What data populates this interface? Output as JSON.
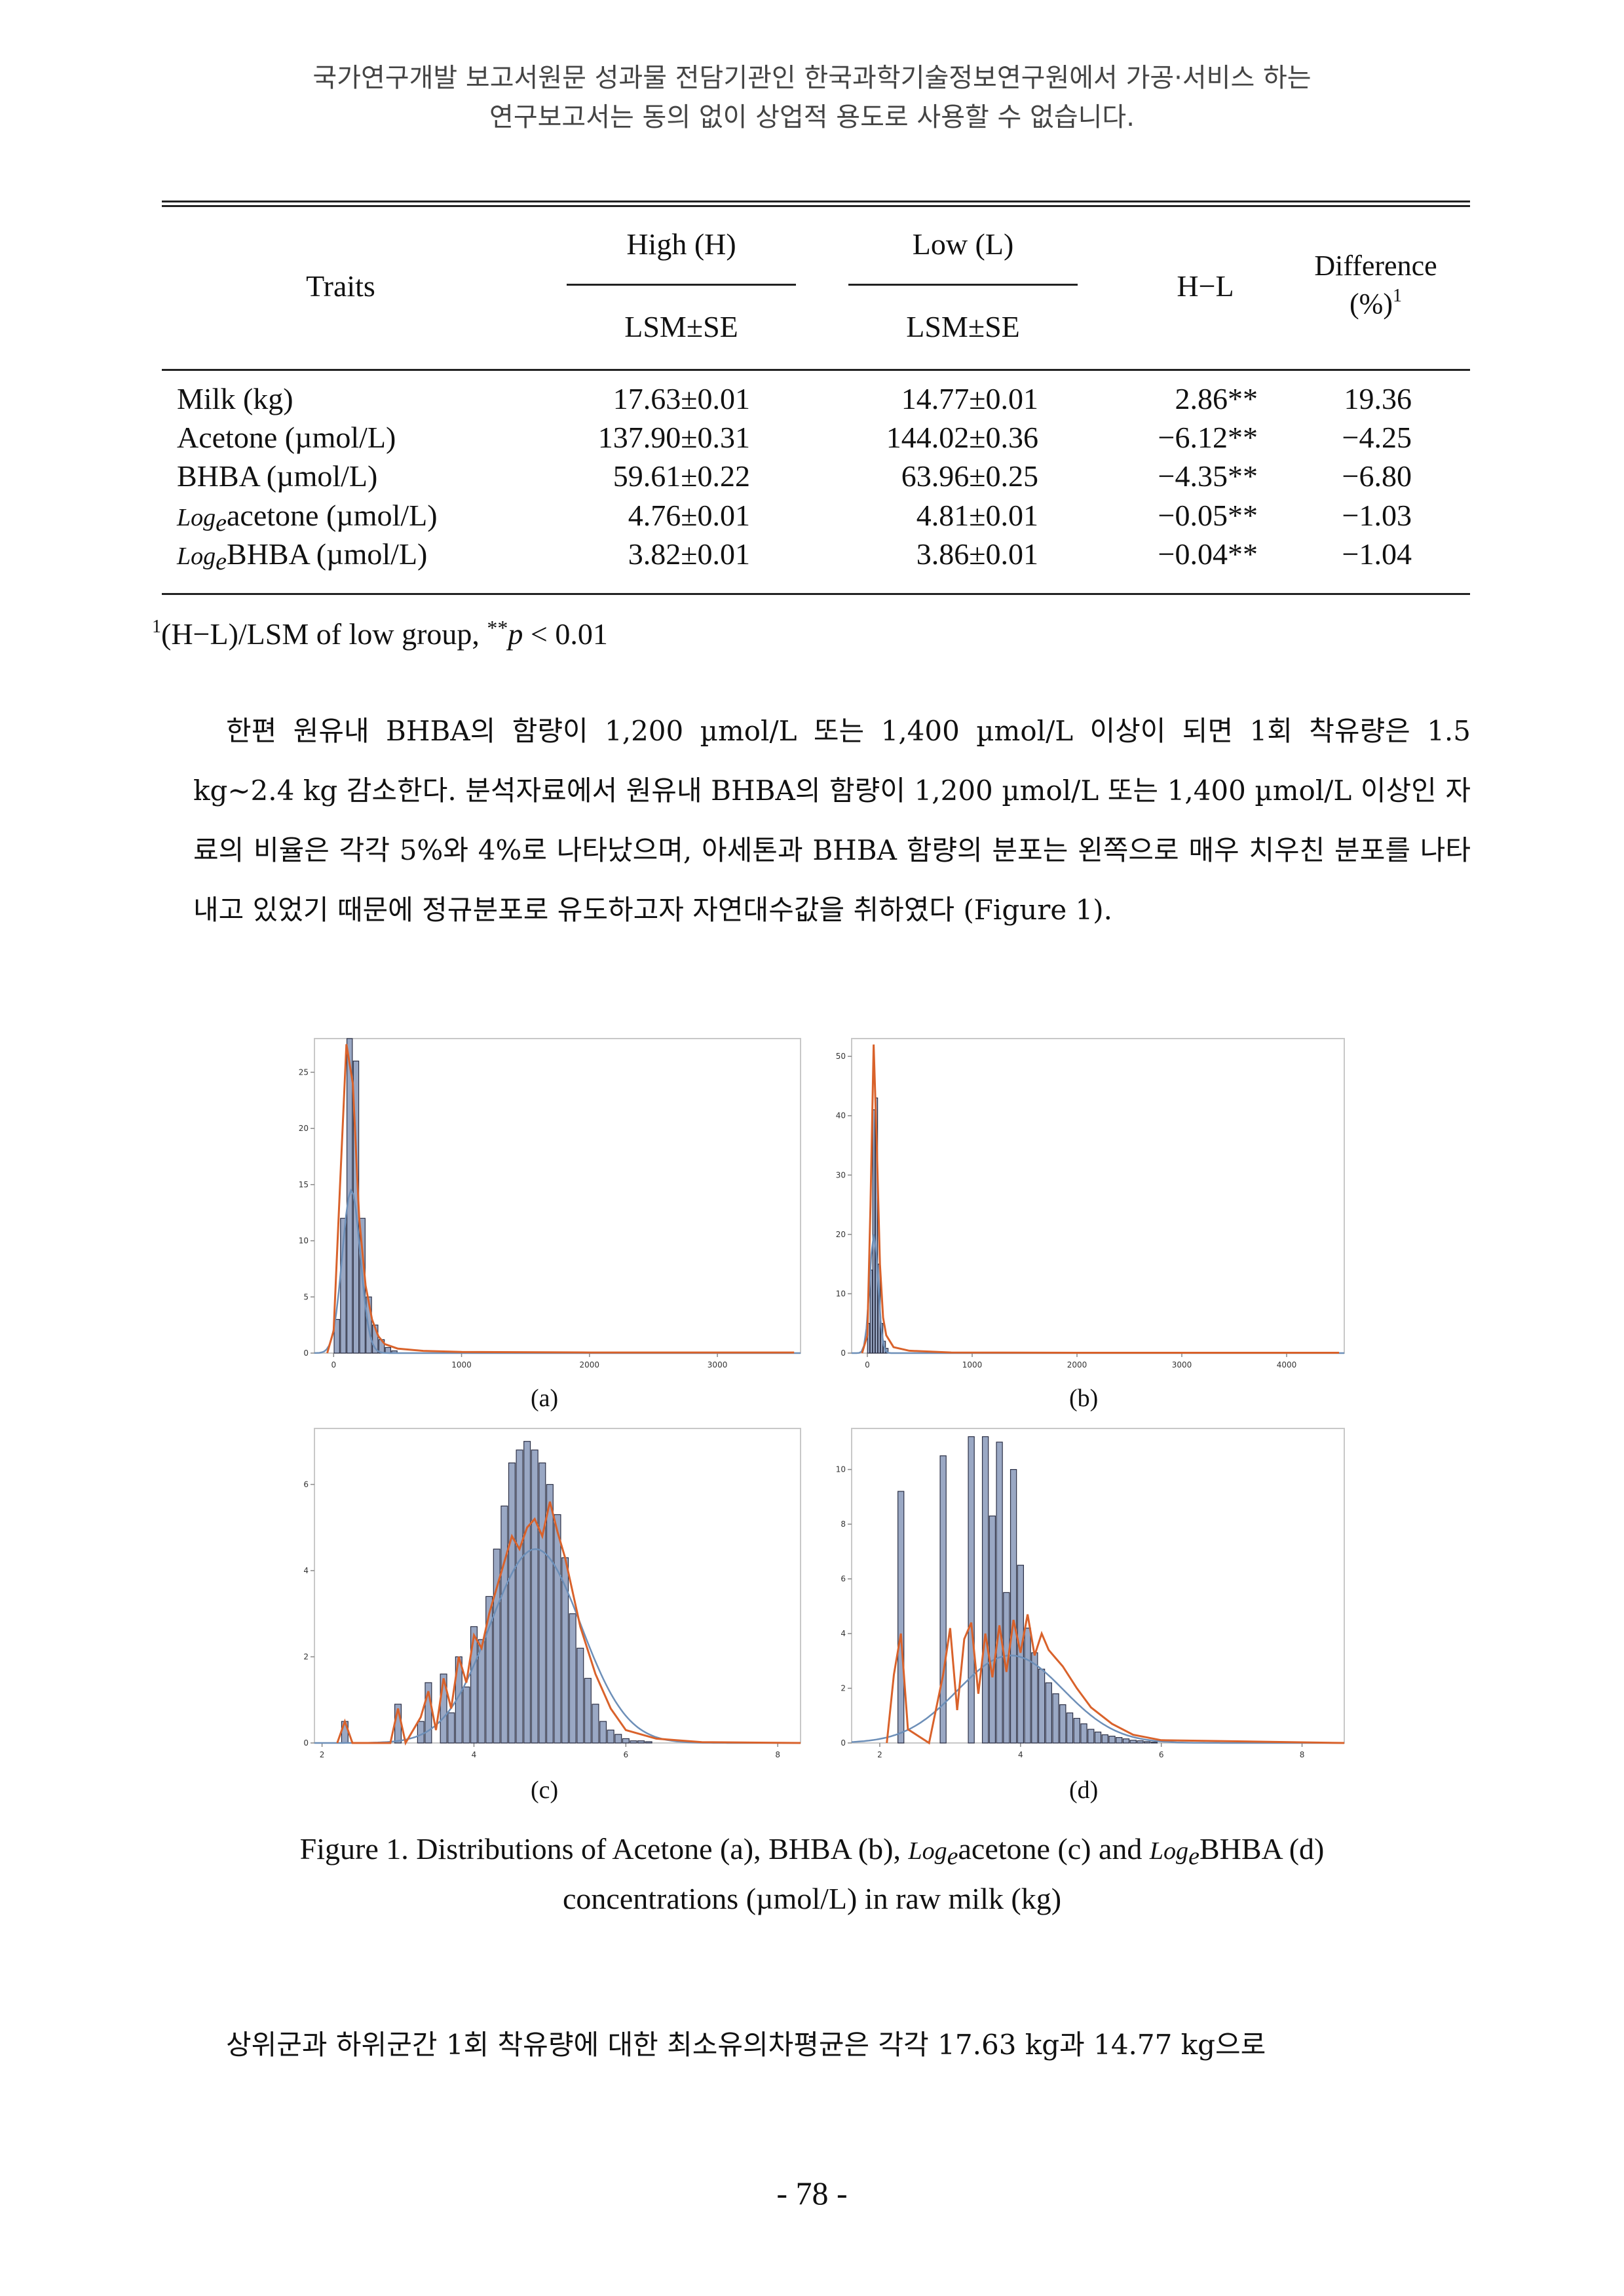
{
  "header": {
    "line1": "국가연구개발 보고서원문 성과물 전담기관인 한국과학기술정보연구원에서 가공·서비스 하는",
    "line2": "연구보고서는 동의 없이 상업적 용도로 사용할 수 없습니다."
  },
  "table": {
    "col_traits": "Traits",
    "col_high": "High (H)",
    "col_low": "Low (L)",
    "col_lsm_h": "LSM±SE",
    "col_lsm_l": "LSM±SE",
    "col_hl": "H−L",
    "col_diff": "Difference",
    "col_diff_unit": "(%)",
    "col_diff_sup": "1",
    "rows": [
      {
        "prefix": "",
        "trait": "Milk (kg)",
        "high": "17.63±0.01",
        "low": "14.77±0.01",
        "hl": "2.86**",
        "diff": "19.36"
      },
      {
        "prefix": "",
        "trait": "Acetone (µmol/L)",
        "high": "137.90±0.31",
        "low": "144.02±0.36",
        "hl": "−6.12**",
        "diff": "−4.25"
      },
      {
        "prefix": "",
        "trait": "BHBA (µmol/L)",
        "high": "59.61±0.22",
        "low": "63.96±0.25",
        "hl": "−4.35**",
        "diff": "−6.80"
      },
      {
        "prefix": "Log",
        "trait": "acetone (µmol/L)",
        "high": "4.76±0.01",
        "low": "4.81±0.01",
        "hl": "−0.05**",
        "diff": "−1.03"
      },
      {
        "prefix": "Log",
        "trait": "BHBA (µmol/L)",
        "high": "3.82±0.01",
        "low": "3.86±0.01",
        "hl": "−0.04**",
        "diff": "−1.04"
      }
    ],
    "log_sub": "e",
    "footnote_sup": "1",
    "footnote_text": "(H−L)/LSM of low group, ",
    "footnote_stars": "**",
    "footnote_p": "p",
    "footnote_tail": " < 0.01"
  },
  "paragraph1": "한편 원유내 BHBA의 함량이 1,200 µmol/L 또는 1,400 µmol/L 이상이 되면 1회 착유량은 1.5 kg~2.4 kg 감소한다. 분석자료에서 원유내 BHBA의 함량이 1,200 µmol/L 또는 1,400 µmol/L 이상인 자료의 비율은 각각 5%와 4%로 나타났으며, 아세톤과 BHBA 함량의 분포는 왼쪽으로 매우 치우친 분포를 나타내고 있었기 때문에 정규분포로 유도하고자 자연대수값을 취하였다 (Figure 1).",
  "figure": {
    "caption_part1": "Figure 1. Distributions of Acetone (a), BHBA (b), ",
    "caption_log1": "Log",
    "caption_part2": "acetone (c) and ",
    "caption_log2": "Log",
    "caption_part3": "BHBA (d)",
    "caption_line2": "concentrations (µmol/L) in raw milk (kg)",
    "log_sub": "e",
    "colors": {
      "bars": "#9aa8c4",
      "bar_edge": "#2b2f45",
      "normal": "#6d8fb8",
      "density": "#d9622b"
    },
    "panels": [
      "(a)",
      "(b)",
      "(c)",
      "(d)"
    ]
  },
  "chart_data": [
    {
      "type": "histogram",
      "panel": "(a)",
      "title": "",
      "xlim": [
        -150,
        3650
      ],
      "ylim": [
        0,
        28
      ],
      "xticks": [
        "0",
        "1000",
        "2000",
        "3000"
      ],
      "yticks": [
        "0",
        "5",
        "10",
        "15",
        "20",
        "25"
      ],
      "bin_centers": [
        25,
        75,
        125,
        175,
        225,
        275,
        325,
        375,
        425,
        475
      ],
      "values": [
        3,
        12,
        28,
        26,
        12,
        5,
        2.5,
        1.2,
        0.5,
        0.2
      ],
      "density_x": [
        -50,
        0,
        50,
        100,
        150,
        200,
        250,
        300,
        350,
        400,
        500,
        700,
        1000,
        2000,
        3600
      ],
      "density_y": [
        0,
        2,
        15,
        27.5,
        24,
        12,
        6,
        3,
        1.5,
        0.8,
        0.4,
        0.2,
        0.1,
        0.05,
        0.05
      ],
      "normal_mean": 137.9,
      "normal_sd": 70,
      "normal_peak": 14.5
    },
    {
      "type": "histogram",
      "panel": "(b)",
      "title": "",
      "xlim": [
        -150,
        4550
      ],
      "ylim": [
        0,
        53
      ],
      "xticks": [
        "0",
        "1000",
        "2000",
        "3000",
        "4000"
      ],
      "yticks": [
        "0",
        "10",
        "20",
        "30",
        "40",
        "50"
      ],
      "bin_centers": [
        12,
        37,
        62,
        87,
        112,
        137,
        162,
        187
      ],
      "values": [
        5,
        14,
        41,
        43,
        15,
        5,
        2,
        0.8
      ],
      "density_x": [
        -50,
        0,
        30,
        60,
        90,
        120,
        150,
        180,
        250,
        400,
        800,
        2000,
        4500
      ],
      "density_y": [
        0,
        3,
        25,
        52,
        35,
        15,
        6,
        3,
        1,
        0.4,
        0.1,
        0.05,
        0.05
      ],
      "normal_mean": 62,
      "normal_sd": 40,
      "normal_peak": 20
    },
    {
      "type": "histogram",
      "panel": "(c)",
      "title": "",
      "xlim": [
        1.9,
        8.3
      ],
      "ylim": [
        0,
        7.3
      ],
      "xticks": [
        "2",
        "4",
        "6",
        "8"
      ],
      "yticks": [
        "0",
        "2",
        "4",
        "6"
      ],
      "bin_centers": [
        2.3,
        3.0,
        3.3,
        3.4,
        3.6,
        3.7,
        3.8,
        3.9,
        4.0,
        4.1,
        4.2,
        4.3,
        4.4,
        4.5,
        4.6,
        4.7,
        4.8,
        4.9,
        5.0,
        5.1,
        5.2,
        5.3,
        5.4,
        5.5,
        5.6,
        5.7,
        5.8,
        5.9,
        6.0,
        6.1,
        6.2,
        6.3
      ],
      "values": [
        0.5,
        0.9,
        0.5,
        1.4,
        1.6,
        0.7,
        2.0,
        1.3,
        2.7,
        2.4,
        3.4,
        4.5,
        5.5,
        6.5,
        6.8,
        7.0,
        6.8,
        6.5,
        6.0,
        5.3,
        4.3,
        3.0,
        2.2,
        1.5,
        0.9,
        0.5,
        0.3,
        0.2,
        0.1,
        0.05,
        0.05,
        0.03
      ],
      "density_x": [
        2.2,
        2.3,
        2.4,
        2.9,
        3.0,
        3.1,
        3.3,
        3.4,
        3.5,
        3.6,
        3.7,
        3.8,
        3.9,
        4.0,
        4.1,
        4.2,
        4.3,
        4.4,
        4.5,
        4.6,
        4.7,
        4.8,
        4.9,
        5.0,
        5.1,
        5.2,
        5.3,
        5.4,
        5.6,
        5.8,
        6.0,
        6.4,
        7.0,
        8.3
      ],
      "density_y": [
        0,
        0.5,
        0,
        0,
        0.8,
        0,
        0.6,
        1.2,
        0.3,
        1.5,
        0.8,
        2.0,
        1.4,
        2.5,
        2.2,
        3.0,
        3.6,
        4.2,
        4.8,
        4.5,
        5.0,
        5.2,
        4.8,
        5.6,
        4.9,
        4.3,
        3.5,
        2.7,
        1.6,
        0.8,
        0.3,
        0.1,
        0.02,
        0
      ],
      "normal_mean": 4.81,
      "normal_sd": 0.6,
      "normal_peak": 4.5
    },
    {
      "type": "histogram",
      "panel": "(d)",
      "title": "",
      "xlim": [
        1.6,
        8.6
      ],
      "ylim": [
        0,
        11.5
      ],
      "xticks": [
        "2",
        "4",
        "6",
        "8"
      ],
      "yticks": [
        "0",
        "2",
        "4",
        "6",
        "8",
        "10"
      ],
      "bin_centers": [
        2.3,
        2.9,
        3.3,
        3.5,
        3.6,
        3.7,
        3.8,
        3.9,
        4.0,
        4.1,
        4.2,
        4.3,
        4.4,
        4.5,
        4.6,
        4.7,
        4.8,
        4.9,
        5.0,
        5.1,
        5.2,
        5.3,
        5.4,
        5.5,
        5.6,
        5.7,
        5.8,
        5.9
      ],
      "values": [
        9.2,
        10.5,
        11.2,
        11.2,
        8.3,
        11.0,
        5.5,
        10.0,
        6.5,
        4.2,
        3.3,
        2.7,
        2.2,
        1.8,
        1.4,
        1.1,
        0.9,
        0.7,
        0.5,
        0.4,
        0.3,
        0.25,
        0.2,
        0.15,
        0.1,
        0.08,
        0.05,
        0.03
      ],
      "density_x": [
        2.1,
        2.2,
        2.3,
        2.4,
        2.7,
        2.9,
        3.0,
        3.1,
        3.2,
        3.3,
        3.4,
        3.5,
        3.6,
        3.7,
        3.8,
        3.9,
        4.0,
        4.1,
        4.2,
        4.3,
        4.4,
        4.5,
        4.6,
        4.8,
        5.0,
        5.3,
        5.6,
        6.0,
        8.6
      ],
      "density_y": [
        0,
        2.5,
        4.0,
        0.5,
        0,
        2.5,
        4.2,
        1.2,
        3.8,
        4.4,
        1.8,
        4.0,
        2.4,
        4.3,
        2.6,
        4.5,
        3.3,
        4.7,
        3.2,
        4.0,
        3.4,
        3.1,
        2.8,
        2.0,
        1.3,
        0.7,
        0.3,
        0.1,
        0
      ],
      "normal_mean": 3.86,
      "normal_sd": 0.75,
      "normal_peak": 3.2
    }
  ],
  "paragraph2": "상위군과 하위군간 1회 착유량에 대한 최소유의차평균은 각각 17.63 kg과 14.77 kg으로",
  "page_number": "- 78 -"
}
